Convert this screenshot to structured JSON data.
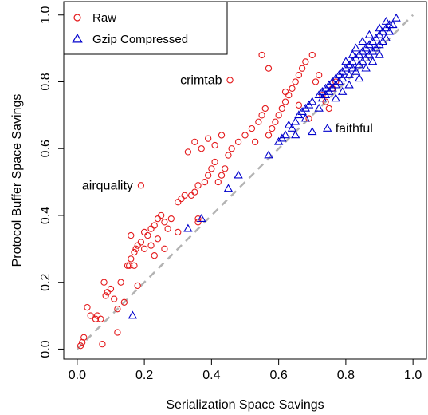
{
  "chart_data": {
    "type": "scatter",
    "xlabel": "Serialization Space Savings",
    "ylabel": "Protocol Buffer Space Savings",
    "xlim": [
      -0.04,
      1.04
    ],
    "ylim": [
      -0.03,
      1.04
    ],
    "x_ticks": [
      0.0,
      0.2,
      0.4,
      0.6,
      0.8,
      1.0
    ],
    "y_ticks": [
      0.0,
      0.2,
      0.4,
      0.6,
      0.8,
      1.0
    ],
    "x_tick_labels": [
      "0.0",
      "0.2",
      "0.4",
      "0.6",
      "0.8",
      "1.0"
    ],
    "y_tick_labels": [
      "0.0",
      "0.2",
      "0.4",
      "0.6",
      "0.8",
      "1.0"
    ],
    "legend": {
      "position": "top-left"
    },
    "reference_line": {
      "slope": 1,
      "intercept": 0,
      "style": "dashed",
      "color": "#b3b3b3"
    },
    "series": [
      {
        "name": "Raw",
        "marker": "circle",
        "color": "#e41a1c",
        "points": [
          [
            0.01,
            0.01
          ],
          [
            0.015,
            0.02
          ],
          [
            0.02,
            0.035
          ],
          [
            0.03,
            0.125
          ],
          [
            0.04,
            0.1
          ],
          [
            0.055,
            0.09
          ],
          [
            0.06,
            0.1
          ],
          [
            0.07,
            0.09
          ],
          [
            0.075,
            0.015
          ],
          [
            0.08,
            0.2
          ],
          [
            0.085,
            0.16
          ],
          [
            0.09,
            0.17
          ],
          [
            0.1,
            0.18
          ],
          [
            0.11,
            0.15
          ],
          [
            0.12,
            0.05
          ],
          [
            0.13,
            0.2
          ],
          [
            0.14,
            0.14
          ],
          [
            0.15,
            0.25
          ],
          [
            0.155,
            0.25
          ],
          [
            0.16,
            0.27
          ],
          [
            0.17,
            0.29
          ],
          [
            0.175,
            0.3
          ],
          [
            0.18,
            0.31
          ],
          [
            0.19,
            0.32
          ],
          [
            0.2,
            0.35
          ],
          [
            0.21,
            0.34
          ],
          [
            0.22,
            0.36
          ],
          [
            0.23,
            0.37
          ],
          [
            0.24,
            0.39
          ],
          [
            0.25,
            0.4
          ],
          [
            0.17,
            0.25
          ],
          [
            0.18,
            0.19
          ],
          [
            0.16,
            0.34
          ],
          [
            0.2,
            0.3
          ],
          [
            0.22,
            0.31
          ],
          [
            0.24,
            0.33
          ],
          [
            0.26,
            0.38
          ],
          [
            0.27,
            0.36
          ],
          [
            0.28,
            0.39
          ],
          [
            0.3,
            0.44
          ],
          [
            0.31,
            0.45
          ],
          [
            0.32,
            0.46
          ],
          [
            0.34,
            0.46
          ],
          [
            0.35,
            0.47
          ],
          [
            0.36,
            0.49
          ],
          [
            0.36,
            0.39
          ],
          [
            0.38,
            0.5
          ],
          [
            0.39,
            0.52
          ],
          [
            0.4,
            0.54
          ],
          [
            0.41,
            0.56
          ],
          [
            0.42,
            0.5
          ],
          [
            0.43,
            0.52
          ],
          [
            0.44,
            0.54
          ],
          [
            0.45,
            0.58
          ],
          [
            0.46,
            0.6
          ],
          [
            0.48,
            0.62
          ],
          [
            0.5,
            0.64
          ],
          [
            0.52,
            0.66
          ],
          [
            0.53,
            0.62
          ],
          [
            0.54,
            0.68
          ],
          [
            0.55,
            0.7
          ],
          [
            0.56,
            0.72
          ],
          [
            0.57,
            0.64
          ],
          [
            0.58,
            0.66
          ],
          [
            0.59,
            0.68
          ],
          [
            0.6,
            0.7
          ],
          [
            0.61,
            0.72
          ],
          [
            0.62,
            0.74
          ],
          [
            0.63,
            0.76
          ],
          [
            0.64,
            0.78
          ],
          [
            0.65,
            0.8
          ],
          [
            0.66,
            0.82
          ],
          [
            0.67,
            0.84
          ],
          [
            0.68,
            0.86
          ],
          [
            0.7,
            0.88
          ],
          [
            0.71,
            0.8
          ],
          [
            0.72,
            0.82
          ],
          [
            0.73,
            0.76
          ],
          [
            0.74,
            0.74
          ],
          [
            0.75,
            0.72
          ],
          [
            0.76,
            0.78
          ],
          [
            0.77,
            0.8
          ],
          [
            0.33,
            0.59
          ],
          [
            0.35,
            0.62
          ],
          [
            0.37,
            0.6
          ],
          [
            0.39,
            0.63
          ],
          [
            0.41,
            0.61
          ],
          [
            0.43,
            0.64
          ],
          [
            0.55,
            0.88
          ],
          [
            0.57,
            0.84
          ],
          [
            0.19,
            0.49
          ],
          [
            0.455,
            0.805
          ],
          [
            0.62,
            0.77
          ],
          [
            0.66,
            0.73
          ],
          [
            0.69,
            0.69
          ],
          [
            0.36,
            0.38
          ],
          [
            0.3,
            0.35
          ],
          [
            0.26,
            0.3
          ],
          [
            0.23,
            0.28
          ],
          [
            0.12,
            0.12
          ]
        ]
      },
      {
        "name": "Gzip Compressed",
        "marker": "triangle",
        "color": "#0000cc",
        "points": [
          [
            0.165,
            0.1
          ],
          [
            0.33,
            0.36
          ],
          [
            0.37,
            0.39
          ],
          [
            0.45,
            0.48
          ],
          [
            0.48,
            0.52
          ],
          [
            0.57,
            0.58
          ],
          [
            0.6,
            0.62
          ],
          [
            0.62,
            0.64
          ],
          [
            0.64,
            0.66
          ],
          [
            0.65,
            0.68
          ],
          [
            0.66,
            0.7
          ],
          [
            0.67,
            0.71
          ],
          [
            0.68,
            0.72
          ],
          [
            0.69,
            0.73
          ],
          [
            0.7,
            0.74
          ],
          [
            0.7,
            0.65
          ],
          [
            0.745,
            0.66
          ],
          [
            0.72,
            0.76
          ],
          [
            0.73,
            0.77
          ],
          [
            0.74,
            0.78
          ],
          [
            0.75,
            0.79
          ],
          [
            0.76,
            0.8
          ],
          [
            0.77,
            0.81
          ],
          [
            0.78,
            0.82
          ],
          [
            0.79,
            0.83
          ],
          [
            0.8,
            0.84
          ],
          [
            0.81,
            0.85
          ],
          [
            0.82,
            0.86
          ],
          [
            0.83,
            0.87
          ],
          [
            0.84,
            0.88
          ],
          [
            0.85,
            0.89
          ],
          [
            0.86,
            0.9
          ],
          [
            0.87,
            0.91
          ],
          [
            0.88,
            0.92
          ],
          [
            0.89,
            0.93
          ],
          [
            0.9,
            0.94
          ],
          [
            0.91,
            0.95
          ],
          [
            0.92,
            0.96
          ],
          [
            0.93,
            0.97
          ],
          [
            0.95,
            0.99
          ],
          [
            0.8,
            0.86
          ],
          [
            0.81,
            0.82
          ],
          [
            0.82,
            0.84
          ],
          [
            0.83,
            0.83
          ],
          [
            0.84,
            0.85
          ],
          [
            0.85,
            0.86
          ],
          [
            0.86,
            0.87
          ],
          [
            0.87,
            0.88
          ],
          [
            0.88,
            0.89
          ],
          [
            0.89,
            0.9
          ],
          [
            0.9,
            0.91
          ],
          [
            0.91,
            0.92
          ],
          [
            0.92,
            0.93
          ],
          [
            0.79,
            0.81
          ],
          [
            0.78,
            0.8
          ],
          [
            0.77,
            0.79
          ],
          [
            0.76,
            0.78
          ],
          [
            0.75,
            0.77
          ],
          [
            0.74,
            0.76
          ],
          [
            0.73,
            0.75
          ],
          [
            0.82,
            0.88
          ],
          [
            0.83,
            0.9
          ],
          [
            0.85,
            0.92
          ],
          [
            0.87,
            0.94
          ],
          [
            0.84,
            0.81
          ],
          [
            0.86,
            0.84
          ],
          [
            0.88,
            0.86
          ],
          [
            0.9,
            0.88
          ],
          [
            0.65,
            0.64
          ],
          [
            0.63,
            0.67
          ],
          [
            0.61,
            0.63
          ],
          [
            0.68,
            0.69
          ],
          [
            0.72,
            0.72
          ],
          [
            0.81,
            0.79
          ],
          [
            0.79,
            0.77
          ],
          [
            0.77,
            0.75
          ],
          [
            0.93,
            0.95
          ],
          [
            0.94,
            0.97
          ],
          [
            0.92,
            0.98
          ],
          [
            0.9,
            0.96
          ]
        ]
      }
    ],
    "annotations": [
      {
        "text": "crimtab",
        "x": 0.455,
        "y": 0.805,
        "anchor": "end"
      },
      {
        "text": "airquality",
        "x": 0.19,
        "y": 0.49,
        "anchor": "end"
      },
      {
        "text": "faithful",
        "x": 0.745,
        "y": 0.66,
        "anchor": "start"
      }
    ]
  }
}
